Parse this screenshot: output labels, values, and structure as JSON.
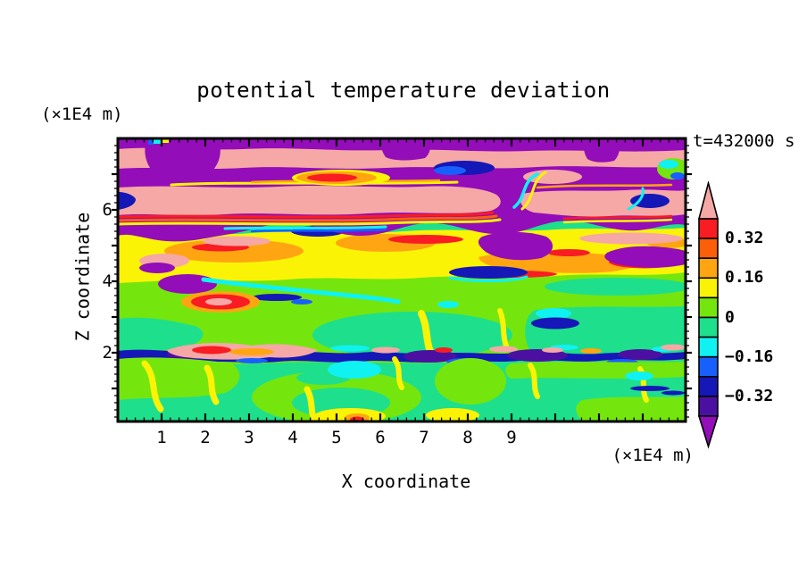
{
  "title": "potential temperature deviation",
  "z_axis_unit_label": "(×1E4 m)",
  "time_label": "t=432000 s",
  "axes": {
    "x": {
      "label": "X coordinate",
      "unit": "(×1E4 m)",
      "min": 0,
      "max": 12.98,
      "major_step": 1,
      "minor_step": 0.2,
      "labeled_ticks": [
        "1",
        "2",
        "3",
        "4",
        "5",
        "6",
        "7",
        "8",
        "9"
      ]
    },
    "z": {
      "label": "Z coordinate",
      "unit": "(×1E4 m)",
      "min": 0.08,
      "max": 8.0,
      "major_step": 1,
      "minor_step": 0.2,
      "labeled_ticks": [
        "2",
        "4",
        "6"
      ]
    }
  },
  "colorbar": {
    "segments_top_to_bottom": [
      "red",
      "orangered",
      "orange",
      "yellow",
      "chartreuse",
      "green",
      "cyan",
      "blue",
      "navy",
      "indigo"
    ],
    "over_range_color": "pink",
    "under_range_color": "purple",
    "labels": [
      {
        "text": "0.32",
        "boundary_index": 1
      },
      {
        "text": "0.16",
        "boundary_index": 3
      },
      {
        "text": "0",
        "boundary_index": 5
      },
      {
        "text": "−0.16",
        "boundary_index": 7
      },
      {
        "text": "−0.32",
        "boundary_index": 9
      }
    ]
  },
  "palette": {
    "pink": "#F5A8A6",
    "red": "#F91C22",
    "orangered": "#FD5E08",
    "orange": "#FFA512",
    "yellow": "#FBF306",
    "chartreuse": "#74E60E",
    "green": "#1EDF8C",
    "cyan": "#10F2F2",
    "blue": "#1760FD",
    "navy": "#1517B7",
    "indigo": "#4B10A2",
    "purple": "#930DB8"
  },
  "chart_data": {
    "type": "heatmap",
    "subtype": "filled_contour_xz_cross_section",
    "title": "potential temperature deviation",
    "xlabel": "X coordinate",
    "x_unit": "(×1E4 m)",
    "ylabel": "Z coordinate",
    "y_unit": "(×1E4 m)",
    "annotation": "t=432000 s",
    "xlim": [
      0,
      13
    ],
    "ylim": [
      0,
      8
    ],
    "x_major_ticks": [
      1,
      2,
      3,
      4,
      5,
      6,
      7,
      8,
      9
    ],
    "y_major_ticks": [
      2,
      4,
      6
    ],
    "grid": false,
    "legend_position": "right-colorbar",
    "contour_interval": 0.08,
    "contour_levels": [
      -0.4,
      -0.32,
      -0.24,
      -0.16,
      -0.08,
      0,
      0.08,
      0.16,
      0.24,
      0.32,
      0.4
    ],
    "colorbar_labeled_levels": [
      0.32,
      0.16,
      0,
      -0.16,
      -0.32
    ],
    "palette_low_to_high": [
      "purple",
      "indigo",
      "navy",
      "blue",
      "cyan",
      "green",
      "chartreuse",
      "yellow",
      "orange",
      "orangered",
      "red",
      "pink"
    ],
    "field_summary": [
      "z≈5.3–8 (×1E4 m): alternating horizontal salmon-pink (>+0.40) and purple (<−0.40) wave bands with thin rainbow transition filaments",
      "z≈3.5–5.3: turbulent mix of yellow/orange/red streaks, pink and purple/navy blobs over green background",
      "z≈2.3–3.5: mostly light yellow-green (0 to +0.08) with yellow wisps",
      "z≈2: thin ragged dark navy/indigo inversion line across full width with embedded pink/red patch near x≈1–2",
      "z<2: spring-green (−0.08 to 0) with chartreuse patches, yellow wisps and small cyan/navy spots"
    ]
  }
}
